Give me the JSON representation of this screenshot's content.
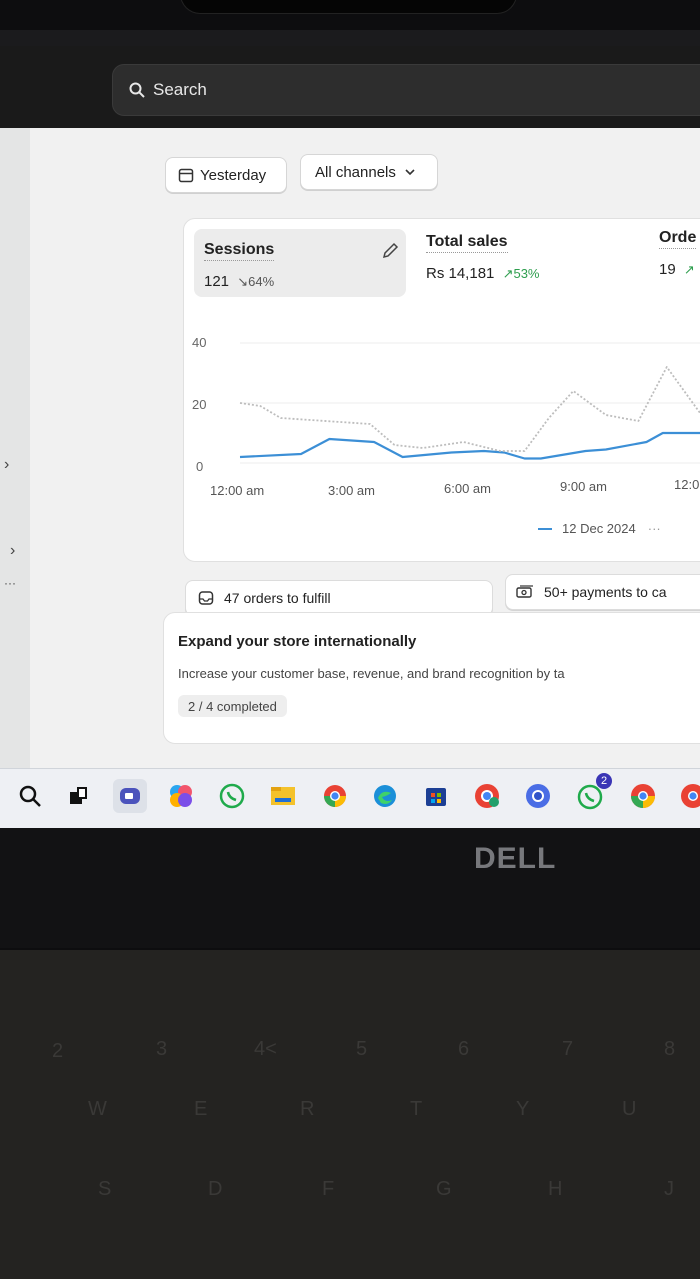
{
  "search": {
    "label": "Search"
  },
  "filters": {
    "date_label": "Yesterday",
    "channel_label": "All channels"
  },
  "metrics": {
    "sessions": {
      "label": "Sessions",
      "value": "121",
      "change": "64%"
    },
    "total_sales": {
      "label": "Total sales",
      "value": "Rs 14,181",
      "change": "53%"
    },
    "orders": {
      "label": "Orde",
      "value": "19"
    }
  },
  "chart_data": {
    "type": "line",
    "y_ticks": [
      "40",
      "20",
      "0"
    ],
    "ylim": [
      0,
      40
    ],
    "x_ticks": [
      "12:00 am",
      "3:00 am",
      "6:00 am",
      "9:00 am",
      "12:0"
    ],
    "legend": [
      "12 Dec 2024"
    ],
    "series": [
      {
        "name": "12 Dec 2024",
        "style": "solid",
        "color": "#3c8fd6",
        "x": [
          0,
          1.5,
          2.2,
          3.3,
          4,
          5.2,
          6,
          6.5,
          7,
          7.4,
          8.5,
          9,
          10,
          10.4,
          11.4,
          12.3
        ],
        "values": [
          2,
          3,
          8,
          7,
          2,
          3.5,
          4,
          3.5,
          1.5,
          1.5,
          4,
          4.5,
          7,
          10,
          10,
          11
        ]
      },
      {
        "style": "dotted",
        "color": "#bdbdbd",
        "x": [
          0,
          0.5,
          1,
          3.2,
          3.8,
          4.5,
          5.5,
          6.4,
          7,
          7.6,
          8.2,
          9,
          9.8,
          10.5,
          11.3,
          12.3
        ],
        "values": [
          20,
          19,
          15,
          13,
          6,
          5,
          7,
          4,
          4,
          15,
          24,
          16,
          14,
          32,
          17,
          22
        ]
      }
    ]
  },
  "tasks": {
    "orders_to_fulfill": "47 orders to fulfill",
    "payments_to_capture": "50+ payments to ca"
  },
  "promo": {
    "title": "Expand your store internationally",
    "description": "Increase your customer base, revenue, and brand recognition by ta",
    "progress": "2 / 4 completed"
  },
  "taskbar": {
    "apps": [
      "search-icon",
      "task-view-icon",
      "teams-icon",
      "copilot-icon",
      "whatsapp-icon",
      "file-explorer-icon",
      "chrome-icon",
      "edge-icon",
      "store-icon",
      "chrome-profile-icon",
      "chrome-profile-2-icon",
      "whatsapp-beta-icon",
      "chrome-profile-3-icon",
      "chrome-profile-4-icon"
    ],
    "whatsapp_badge": "2"
  },
  "device": {
    "brand": "DELL"
  },
  "keyboard": {
    "row1": [
      "2",
      "3",
      "4<",
      "5",
      "6",
      "7",
      "8"
    ],
    "row2": [
      "W",
      "E",
      "R",
      "T",
      "Y",
      "U"
    ],
    "row3": [
      "S",
      "D",
      "F",
      "G",
      "H",
      "J"
    ]
  },
  "colors": {
    "accent_line": "#3c8fd6",
    "positive": "#2e9e4e",
    "taskbar_bg": "#eef0f4"
  }
}
